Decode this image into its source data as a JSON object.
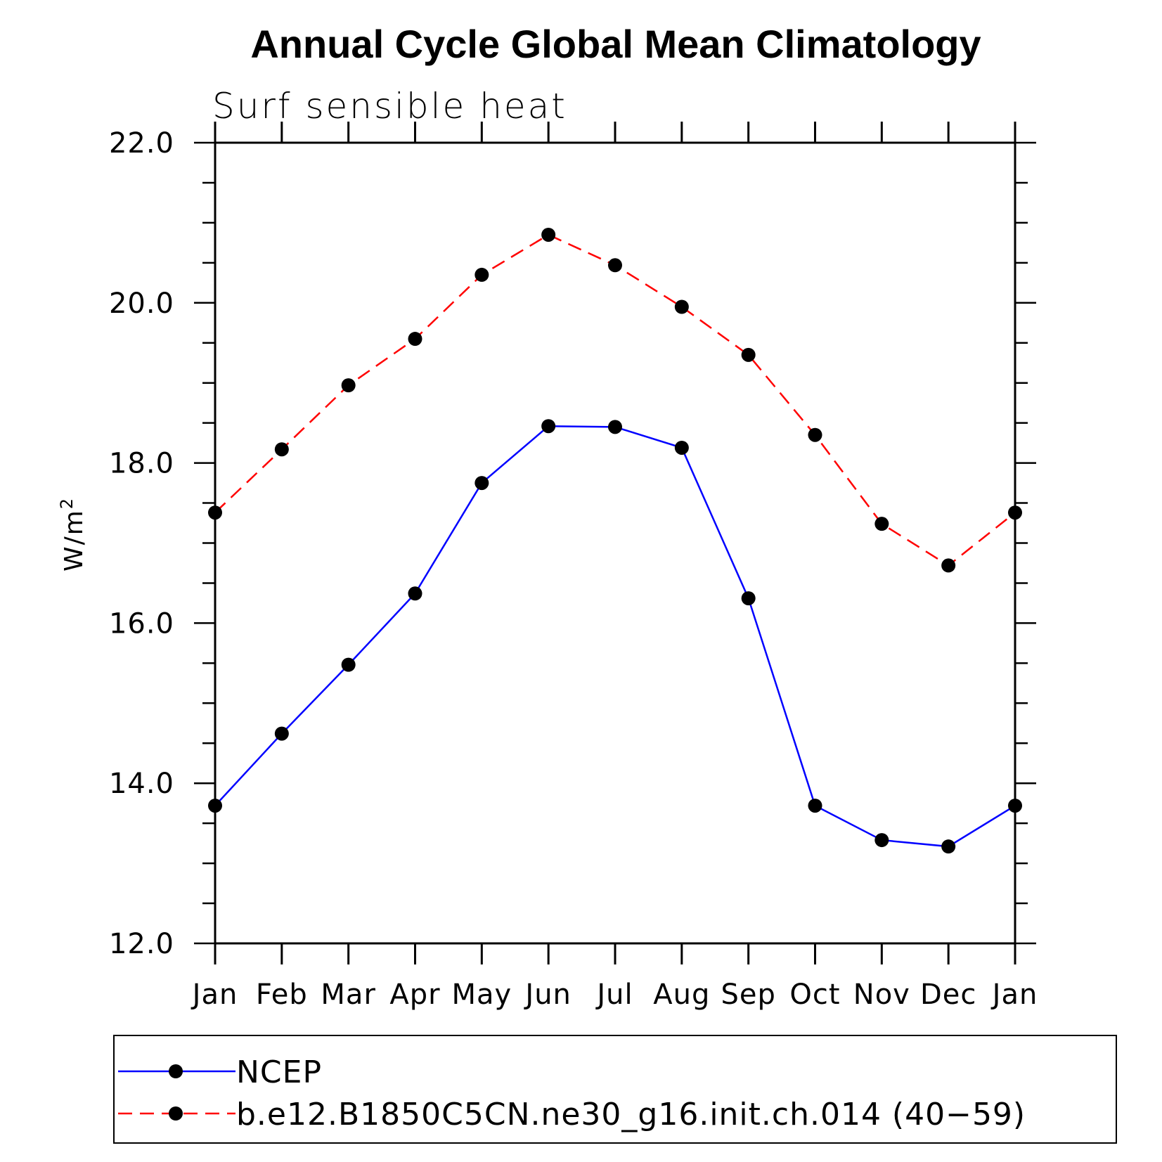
{
  "chart_data": {
    "type": "line",
    "title": "Annual Cycle Global Mean Climatology",
    "subtitle": "Surf sensible heat",
    "ylabel": "W/m",
    "ylabel_superscript": "2",
    "xlabel": "",
    "categories": [
      "Jan",
      "Feb",
      "Mar",
      "Apr",
      "May",
      "Jun",
      "Jul",
      "Aug",
      "Sep",
      "Oct",
      "Nov",
      "Dec",
      "Jan"
    ],
    "ylim": [
      12.0,
      22.0
    ],
    "y_ticks": [
      "12.0",
      "14.0",
      "16.0",
      "18.0",
      "20.0",
      "22.0"
    ],
    "grid": false,
    "legend_position": "bottom",
    "series": [
      {
        "name": "NCEP",
        "color": "#0000ff",
        "dash": "solid",
        "marker": "filled-circle",
        "values": [
          13.72,
          14.62,
          15.48,
          16.37,
          17.75,
          18.46,
          18.45,
          18.19,
          16.31,
          13.72,
          13.29,
          13.21,
          13.72
        ]
      },
      {
        "name": "b.e12.B1850C5CN.ne30_g16.init.ch.014 (40−59)",
        "color": "#ff0000",
        "dash": "dashed",
        "marker": "filled-circle",
        "values": [
          17.38,
          18.17,
          18.97,
          19.55,
          20.35,
          20.85,
          20.47,
          19.95,
          19.35,
          18.35,
          17.24,
          16.72,
          17.38
        ]
      }
    ]
  }
}
